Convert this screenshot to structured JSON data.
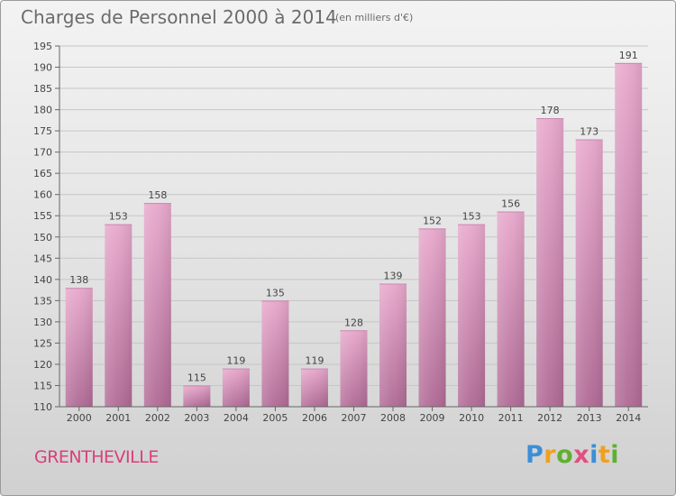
{
  "header": {
    "title": "Charges de Personnel 2000 à 2014",
    "subtitle": "(en milliers d'€)"
  },
  "footer": {
    "town": "GRENTHEVILLE",
    "logo": "Proxiti"
  },
  "colors": {
    "bar_light": "#e8a8cc",
    "bar_dark": "#b06a95",
    "text": "#6b6b6b",
    "town": "#d9407a"
  },
  "chart_data": {
    "type": "bar",
    "title": "Charges de Personnel 2000 à 2014",
    "subtitle": "(en milliers d'€)",
    "categories": [
      "2000",
      "2001",
      "2002",
      "2003",
      "2004",
      "2005",
      "2006",
      "2007",
      "2008",
      "2009",
      "2010",
      "2011",
      "2012",
      "2013",
      "2014"
    ],
    "values": [
      138,
      153,
      158,
      115,
      119,
      135,
      119,
      128,
      139,
      152,
      153,
      156,
      178,
      173,
      191
    ],
    "ylim": [
      110,
      195
    ],
    "yticks": [
      110,
      115,
      120,
      125,
      130,
      135,
      140,
      145,
      150,
      155,
      160,
      165,
      170,
      175,
      180,
      185,
      190,
      195
    ],
    "grid": true,
    "data_labels": true
  }
}
